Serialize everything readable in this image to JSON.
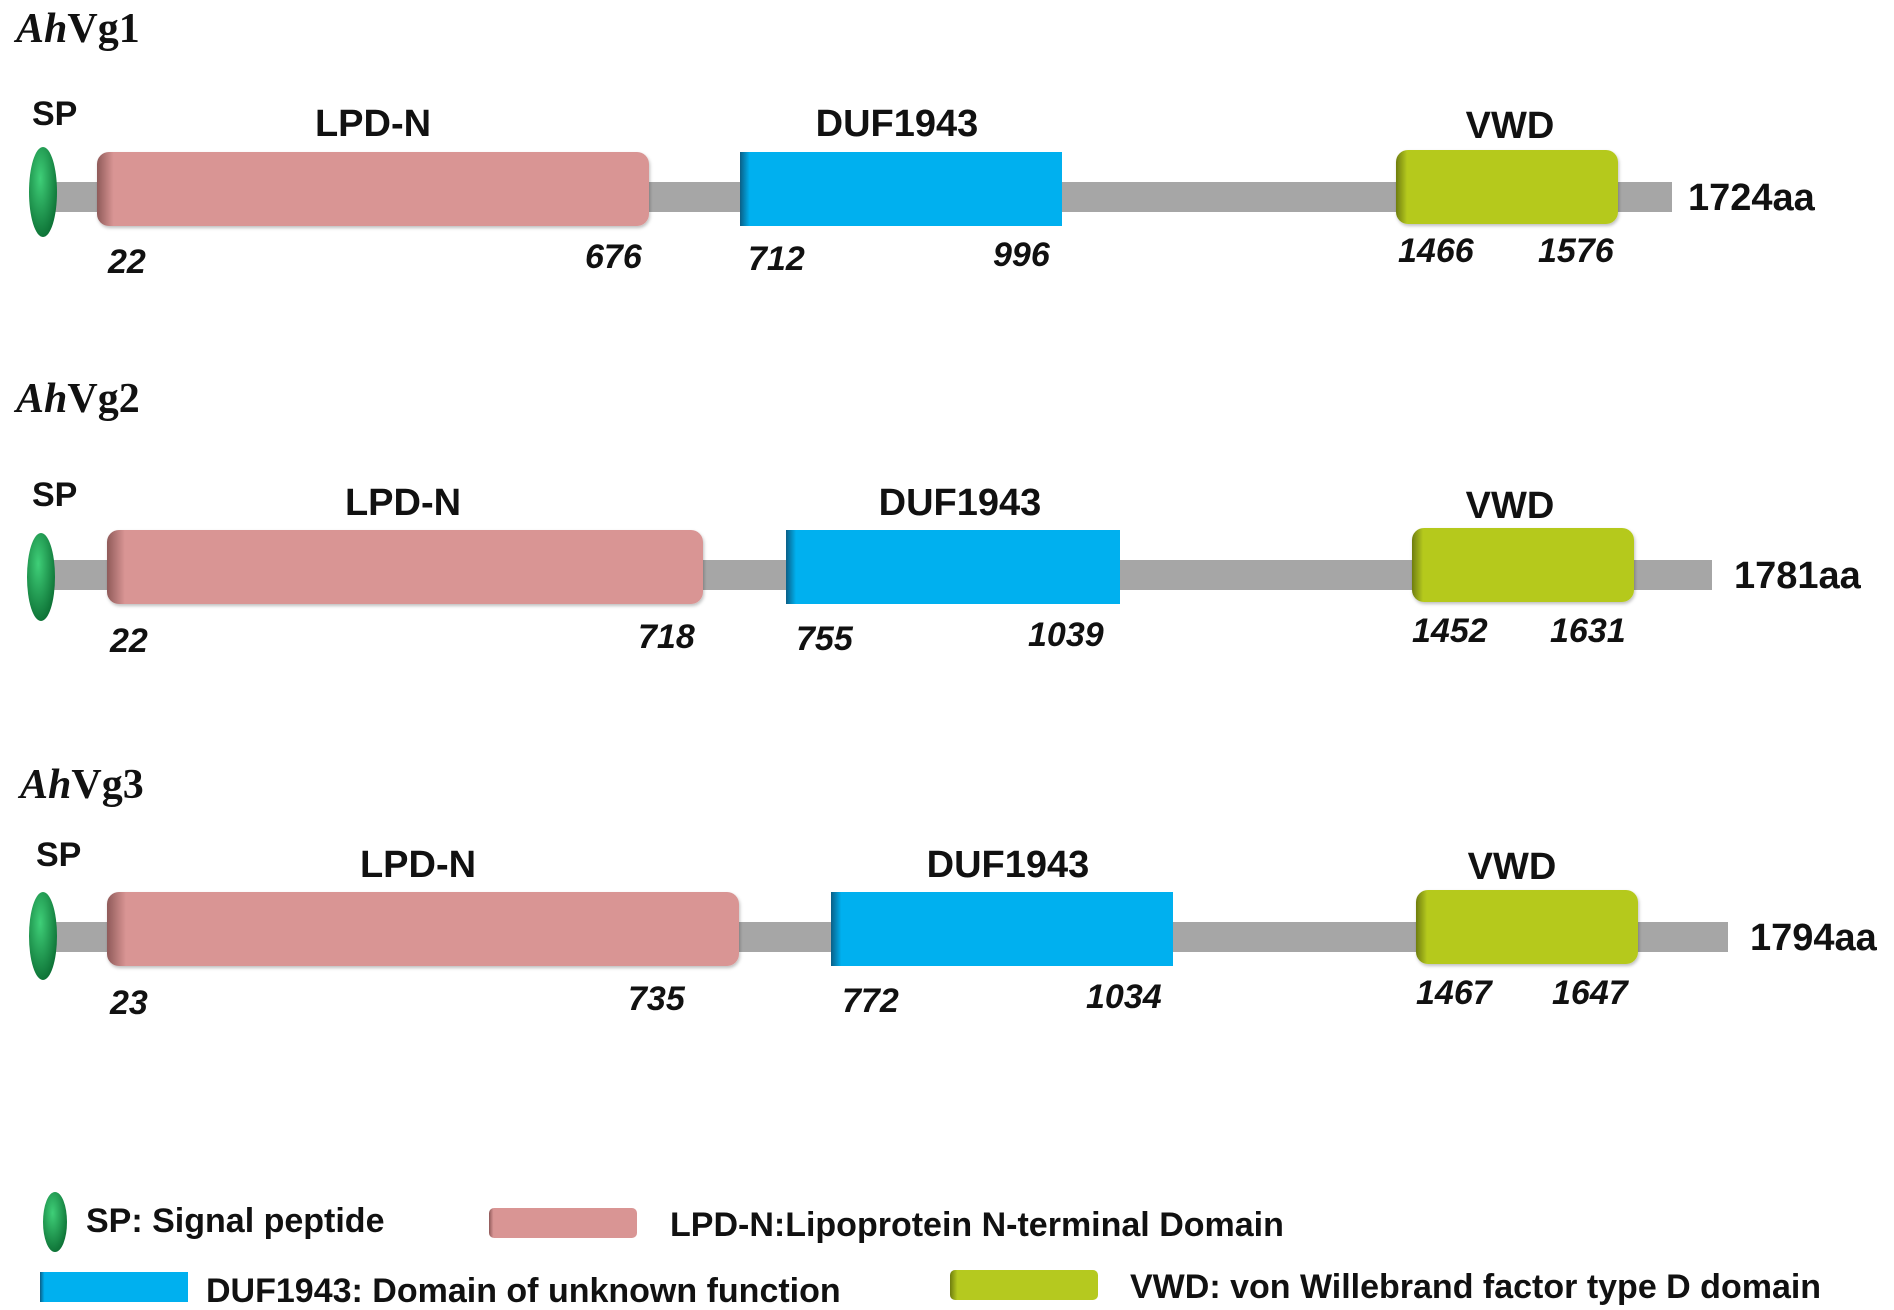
{
  "proteins": [
    {
      "title_italic": "Ah",
      "title_rest": "Vg1",
      "length_label": "1724aa",
      "sp_label": "SP",
      "domains": [
        {
          "label": "LPD-N",
          "start": "22",
          "end": "676"
        },
        {
          "label": "DUF1943",
          "start": "712",
          "end": "996"
        },
        {
          "label": "VWD",
          "start": "1466",
          "end": "1576"
        }
      ]
    },
    {
      "title_italic": "Ah",
      "title_rest": "Vg2",
      "length_label": "1781aa",
      "sp_label": "SP",
      "domains": [
        {
          "label": "LPD-N",
          "start": "22",
          "end": "718"
        },
        {
          "label": "DUF1943",
          "start": "755",
          "end": "1039"
        },
        {
          "label": "VWD",
          "start": "1452",
          "end": "1631"
        }
      ]
    },
    {
      "title_italic": "Ah",
      "title_rest": "Vg3",
      "length_label": "1794aa",
      "sp_label": "SP",
      "domains": [
        {
          "label": "LPD-N",
          "start": "23",
          "end": "735"
        },
        {
          "label": "DUF1943",
          "start": "772",
          "end": "1034"
        },
        {
          "label": "VWD",
          "start": "1467",
          "end": "1647"
        }
      ]
    }
  ],
  "legend": {
    "sp": "SP: Signal peptide",
    "lpdn": "LPD-N:Lipoprotein N-terminal Domain",
    "duf": "DUF1943: Domain of unknown function",
    "vwd": "VWD: von Willebrand factor type D domain"
  },
  "colors": {
    "backbone": "#a6a6a6",
    "sp": "#1f9a4c",
    "lpdn": "#d99594",
    "duf": "#00b0ef",
    "vwd": "#b5c91f"
  }
}
